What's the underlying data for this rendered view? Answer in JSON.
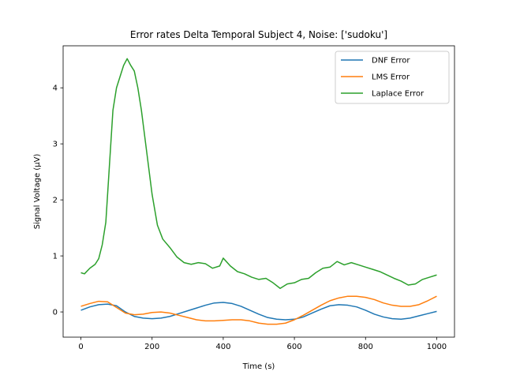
{
  "chart_data": {
    "type": "line",
    "title": "Error rates Delta Temporal Subject 4, Noise: ['sudoku']",
    "xlabel": "Time (s)",
    "ylabel": "Signal Voltage (μV)",
    "xlim": [
      -50,
      1050
    ],
    "ylim": [
      -0.45,
      4.75
    ],
    "xticks": [
      0,
      200,
      400,
      600,
      800,
      1000
    ],
    "yticks": [
      0,
      1,
      2,
      3,
      4
    ],
    "legend_position": "top-right",
    "grid": false,
    "series": [
      {
        "name": "DNF Error",
        "color": "#1f77b4",
        "x": [
          0,
          25,
          50,
          75,
          100,
          125,
          150,
          175,
          200,
          225,
          250,
          275,
          300,
          325,
          350,
          375,
          400,
          425,
          450,
          475,
          500,
          525,
          550,
          575,
          600,
          625,
          650,
          675,
          700,
          725,
          750,
          775,
          800,
          825,
          850,
          875,
          900,
          925,
          950,
          975,
          1000
        ],
        "y": [
          0.03,
          0.09,
          0.13,
          0.14,
          0.11,
          0.0,
          -0.08,
          -0.11,
          -0.12,
          -0.11,
          -0.08,
          -0.03,
          0.02,
          0.07,
          0.12,
          0.16,
          0.17,
          0.15,
          0.1,
          0.03,
          -0.04,
          -0.1,
          -0.13,
          -0.14,
          -0.13,
          -0.09,
          -0.02,
          0.05,
          0.11,
          0.13,
          0.12,
          0.09,
          0.03,
          -0.04,
          -0.09,
          -0.12,
          -0.13,
          -0.11,
          -0.07,
          -0.03,
          0.01
        ]
      },
      {
        "name": "LMS Error",
        "color": "#ff7f0e",
        "x": [
          0,
          25,
          50,
          75,
          100,
          125,
          150,
          175,
          200,
          225,
          250,
          275,
          300,
          325,
          350,
          375,
          400,
          425,
          450,
          475,
          500,
          525,
          550,
          575,
          600,
          625,
          650,
          675,
          700,
          725,
          750,
          775,
          800,
          825,
          850,
          875,
          900,
          925,
          950,
          975,
          1000
        ],
        "y": [
          0.1,
          0.15,
          0.19,
          0.18,
          0.08,
          -0.02,
          -0.05,
          -0.04,
          -0.01,
          0.0,
          -0.02,
          -0.06,
          -0.1,
          -0.14,
          -0.16,
          -0.16,
          -0.15,
          -0.14,
          -0.14,
          -0.16,
          -0.2,
          -0.22,
          -0.22,
          -0.2,
          -0.14,
          -0.06,
          0.03,
          0.12,
          0.2,
          0.25,
          0.28,
          0.28,
          0.26,
          0.22,
          0.16,
          0.12,
          0.1,
          0.1,
          0.13,
          0.2,
          0.28
        ]
      },
      {
        "name": "Laplace Error",
        "color": "#2ca02c",
        "x": [
          0,
          10,
          25,
          40,
          50,
          60,
          70,
          80,
          90,
          100,
          110,
          120,
          130,
          140,
          150,
          160,
          170,
          180,
          190,
          200,
          215,
          230,
          250,
          270,
          290,
          310,
          330,
          350,
          370,
          390,
          400,
          420,
          440,
          460,
          480,
          500,
          520,
          540,
          560,
          580,
          600,
          620,
          640,
          660,
          680,
          700,
          720,
          740,
          760,
          780,
          800,
          820,
          840,
          860,
          880,
          900,
          920,
          940,
          960,
          980,
          1000
        ],
        "y": [
          0.7,
          0.68,
          0.78,
          0.85,
          0.95,
          1.2,
          1.6,
          2.6,
          3.6,
          4.0,
          4.2,
          4.4,
          4.52,
          4.4,
          4.3,
          4.0,
          3.6,
          3.1,
          2.6,
          2.1,
          1.55,
          1.3,
          1.15,
          0.98,
          0.88,
          0.85,
          0.88,
          0.86,
          0.78,
          0.82,
          0.96,
          0.82,
          0.72,
          0.68,
          0.62,
          0.58,
          0.6,
          0.52,
          0.42,
          0.5,
          0.52,
          0.58,
          0.6,
          0.7,
          0.78,
          0.8,
          0.9,
          0.84,
          0.88,
          0.84,
          0.8,
          0.76,
          0.72,
          0.66,
          0.6,
          0.55,
          0.48,
          0.5,
          0.58,
          0.62,
          0.66
        ]
      }
    ]
  }
}
